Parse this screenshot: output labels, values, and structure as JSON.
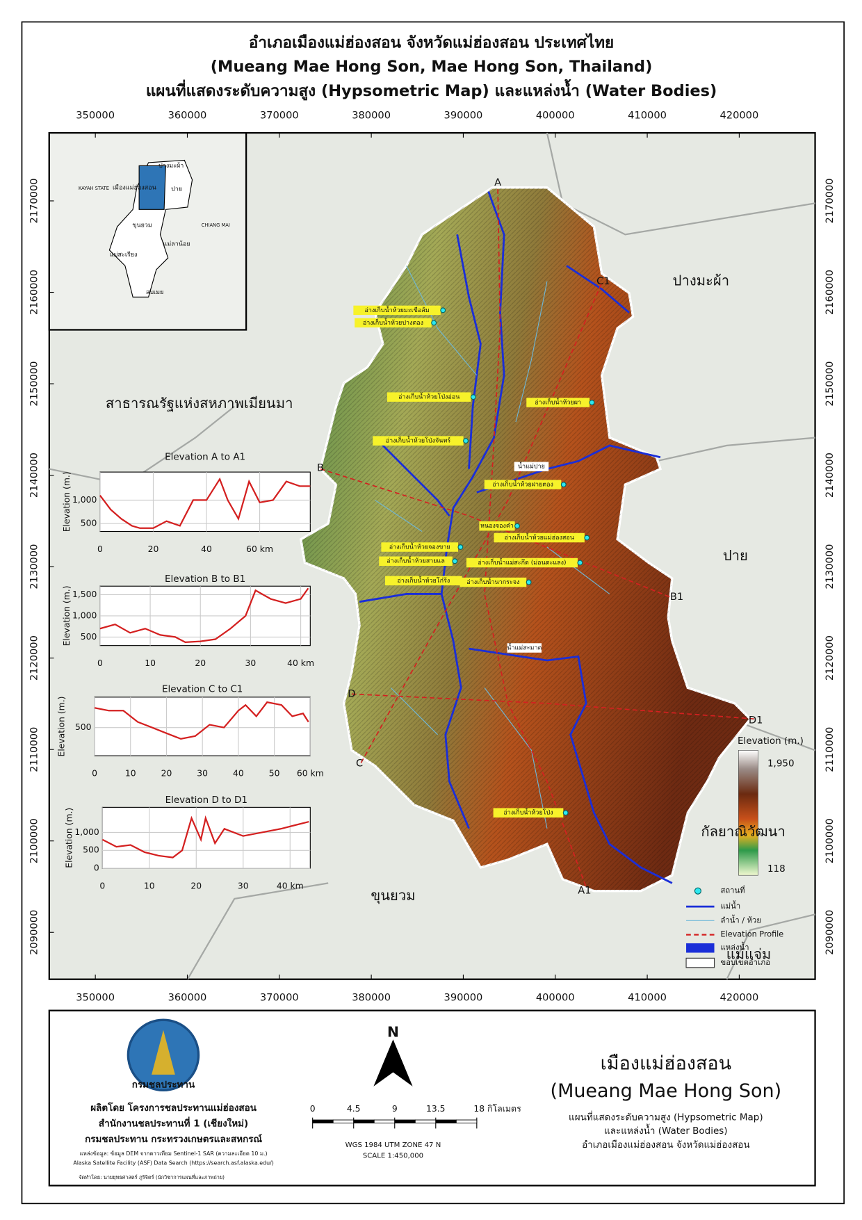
{
  "header": {
    "title_th": "อำเภอเมืองแม่ฮ่องสอน จังหวัดแม่ฮ่องสอน ประเทศไทย",
    "title_en": "(Mueang Mae Hong Son, Mae Hong Son, Thailand)",
    "subtitle": "แผนที่แสดงระดับความสูง (Hypsometric Map) และแหล่งน้ำ (Water Bodies)"
  },
  "map": {
    "eastings": [
      350000,
      360000,
      370000,
      380000,
      390000,
      400000,
      410000,
      420000
    ],
    "northings": [
      2090000,
      2100000,
      2110000,
      2120000,
      2130000,
      2140000,
      2150000,
      2160000,
      2170000
    ],
    "places": [
      "สาธารณรัฐแห่งสหภาพเมียนมา",
      "ปางมะผ้า",
      "ปาย",
      "กัลยาณิวัฒนา",
      "ขุนยวม",
      "แม่แจ่ม"
    ],
    "profile_points": [
      "A",
      "A1",
      "B",
      "B1",
      "C",
      "C1",
      "D",
      "D1"
    ],
    "reservoirs": [
      "อ่างเก็บน้ำห้วยมะเขือส้ม",
      "อ่างเก็บน้ำห้วยปางตอง",
      "อ่างเก็บน้ำห้วยโป่งอ่อน",
      "อ่างเก็บน้ำห้วยผา",
      "อ่างเก็บน้ำห้วยโป่งจันทร์",
      "อ่างเก็บน้ำห้วยฝายตอง",
      "หนองจองคำ",
      "อ่างเก็บน้ำห้วยแม่ฮ่องสอน",
      "อ่างเก็บน้ำห้วยจองขาย",
      "อ่างเก็บน้ำห้วยสายแล",
      "อ่างเก็บน้ำแม่สะกึด (ม่อนตะแลง)",
      "อ่างเก็บน้ำห้วยโก๋ร้ง",
      "อ่างเก็บน้ำนากระจง",
      "อ่างเก็บน้ำห้วยโป่ง"
    ],
    "rivers": [
      "น้ำแม่ปาย",
      "น้ำแม่สะมาด"
    ],
    "inset": [
      "ปางมะผ้า",
      "ปาย",
      "เมืองแม่ฮ่องสอน",
      "ขุนยวม",
      "แม่ลาน้อย",
      "แม่สะเรียง",
      "สบเมย",
      "KAYAH STATE",
      "CHIANG MAI"
    ]
  },
  "profiles": [
    {
      "title": "Elevation A to A1",
      "y_label": "Elevation (m.)",
      "x": [
        0,
        4,
        8,
        12,
        15,
        20,
        25,
        30,
        35,
        40,
        45,
        48,
        52,
        56,
        60,
        65,
        70,
        75,
        79
      ],
      "values": [
        1100,
        800,
        600,
        450,
        400,
        400,
        550,
        450,
        1000,
        1000,
        1450,
        1000,
        600,
        1400,
        950,
        1000,
        1400,
        1300,
        1300
      ],
      "xlim": [
        0,
        79
      ],
      "ylim": [
        330,
        1600
      ],
      "xticks": [
        0,
        20,
        40,
        {
          "value": 60,
          "label": "60 km"
        }
      ],
      "yticks": [
        {
          "value": 1000,
          "label": "1,000"
        },
        500
      ]
    },
    {
      "title": "Elevation B to B1",
      "y_label": "Elevation (m.)",
      "x": [
        0,
        3,
        6,
        9,
        12,
        15,
        17,
        20,
        23,
        26,
        29,
        31,
        34,
        37,
        40,
        41.5
      ],
      "values": [
        700,
        800,
        600,
        700,
        550,
        500,
        380,
        400,
        450,
        700,
        1000,
        1600,
        1400,
        1300,
        1400,
        1650
      ],
      "xlim": [
        0,
        41.9
      ],
      "ylim": [
        300,
        1700
      ],
      "xticks": [
        0,
        10,
        20,
        30,
        {
          "value": 40,
          "label": "40 km"
        }
      ],
      "yticks": [
        {
          "value": 1500,
          "label": "1,500"
        },
        {
          "value": 1000,
          "label": "1,000"
        },
        500
      ]
    },
    {
      "title": "Elevation C to C1",
      "y_label": "Elevation (m.)",
      "x": [
        0,
        4,
        8,
        12,
        16,
        20,
        24,
        28,
        32,
        36,
        40,
        42,
        45,
        48,
        52,
        55,
        58,
        59.5
      ],
      "values": [
        850,
        800,
        800,
        600,
        500,
        400,
        300,
        350,
        550,
        500,
        800,
        900,
        700,
        950,
        900,
        700,
        750,
        600
      ],
      "xlim": [
        0,
        60
      ],
      "ylim": [
        0,
        1040
      ],
      "xticks": [
        0,
        10,
        20,
        30,
        40,
        50,
        {
          "value": 60,
          "label": "60 km"
        }
      ],
      "yticks": [
        500
      ]
    },
    {
      "title": "Elevation D to D1",
      "y_label": "Elevation (m.)",
      "x": [
        0,
        3,
        6,
        9,
        12,
        15,
        17,
        19,
        21,
        22,
        24,
        26,
        30,
        34,
        38,
        41,
        44
      ],
      "values": [
        800,
        600,
        650,
        450,
        350,
        300,
        500,
        1400,
        800,
        1400,
        700,
        1100,
        900,
        1000,
        1100,
        1200,
        1300
      ],
      "xlim": [
        0,
        44.3
      ],
      "ylim": [
        0,
        1700
      ],
      "xticks": [
        0,
        10,
        20,
        30,
        {
          "value": 40,
          "label": "40 km"
        }
      ],
      "yticks": [
        {
          "value": 1000,
          "label": "1,000"
        },
        500,
        0
      ]
    }
  ],
  "legend": {
    "items": [
      "สถานที่",
      "แม่น้ำ",
      "ลำน้ำ / ห้วย",
      "Elevation Profile",
      "แหล่งน้ำ",
      "ขอบเขตอำเภอ"
    ],
    "elevation_title": "Elevation (m.)",
    "elevation_max": {
      "value": 1950,
      "label": "1,950"
    },
    "elevation_min": 118
  },
  "footer": {
    "logo": "กรมชลประทาน",
    "producer": [
      "ผลิตโดย โครงการชลประทานแม่ฮ่องสอน",
      "สำนักงานชลประทานที่ 1 (เชียงใหม่)",
      "กรมชลประทาน กระทรวงเกษตรและสหกรณ์"
    ],
    "sources": [
      "แหล่งข้อมูล: ข้อมูล DEM จากดาวเทียม Sentinel-1 SAR (ความละเอียด 10 ม.)",
      "Alaska Satellite Facility (ASF) Data Search (https://search.asf.alaska.edu/)"
    ],
    "author": "จัดทำโดย: นายยุทธศาสตร์ ภูริจิตร์ (นักวิชาการแผนที่และภาพถ่าย)",
    "north": "N",
    "scale_ticks": [
      0,
      4.5,
      9,
      13.5,
      {
        "value": 18,
        "label": "18 กิโลเมตร"
      }
    ],
    "projection": "WGS 1984 UTM ZONE 47 N",
    "scale": "SCALE 1:450,000",
    "name_th": "เมืองแม่ฮ่องสอน",
    "name_en": "(Mueang Mae Hong Son)",
    "desc": [
      "แผนที่แสดงระดับความสูง (Hypsometric Map)",
      "และแหล่งน้ำ (Water Bodies)",
      "อำเภอเมืองแม่ฮ่องสอน จังหวัดแม่ฮ่องสอน"
    ]
  }
}
